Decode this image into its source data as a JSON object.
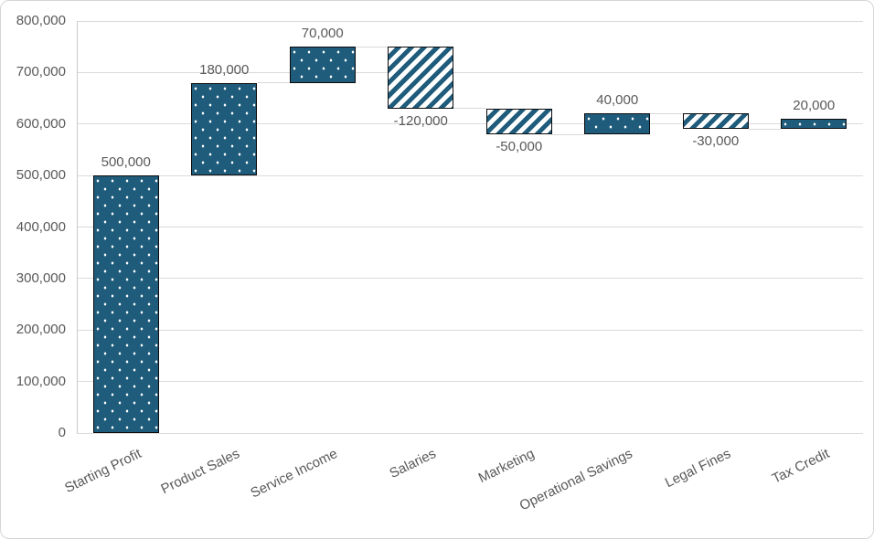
{
  "chart_data": {
    "type": "bar",
    "subtype": "waterfall",
    "title": "",
    "xlabel": "",
    "ylabel": "",
    "categories": [
      "Starting Profit",
      "Product Sales",
      "Service Income",
      "Salaries",
      "Marketing",
      "Operational Savings",
      "Legal Fines",
      "Tax Credit"
    ],
    "values": [
      500000,
      180000,
      70000,
      -120000,
      -50000,
      40000,
      -30000,
      20000
    ],
    "value_labels": [
      "500,000",
      "180,000",
      "70,000",
      "-120,000",
      "-50,000",
      "40,000",
      "-30,000",
      "20,000"
    ],
    "cumulative_start": [
      0,
      500000,
      680000,
      750000,
      630000,
      580000,
      620000,
      590000
    ],
    "cumulative_end": [
      500000,
      680000,
      750000,
      630000,
      580000,
      620000,
      590000,
      610000
    ],
    "ylim": [
      0,
      800000
    ],
    "ytick_step": 100000,
    "ytick_labels": [
      "0",
      "100,000",
      "200,000",
      "300,000",
      "400,000",
      "500,000",
      "600,000",
      "700,000",
      "800,000"
    ],
    "grid": true,
    "legend": false,
    "pattern_increase": "dark teal fill with white polka dots",
    "pattern_decrease": "white fill with teal diagonal stripes",
    "colors": {
      "increase_fill": "#1F5C7C",
      "dot_color": "#FFFFFF",
      "decrease_stripe": "#1F5C7C",
      "bar_border": "#0B0B0B",
      "gridline": "#DADADA",
      "axis_line": "#C9C9C9",
      "connector_line": "#D9D9D9",
      "label_text": "#595959",
      "background": "#FFFFFF"
    }
  }
}
